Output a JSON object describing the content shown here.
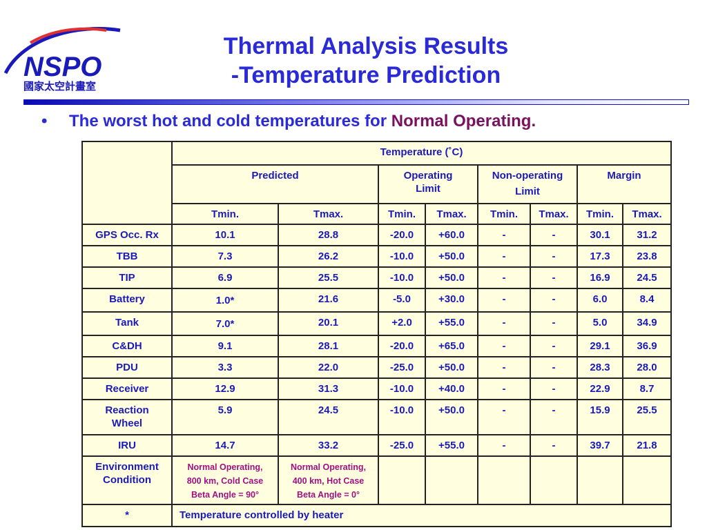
{
  "logo": {
    "wordmark": "NSPO",
    "subtitle": "國家太空計畫室"
  },
  "title": {
    "line1": "Thermal Analysis Results",
    "line2": "-Temperature Prediction"
  },
  "bullet": {
    "prefix": "The worst hot and cold temperatures for ",
    "emphasis": "Normal Operating",
    "suffix": "."
  },
  "table": {
    "header_main": "Temperature (˚C)",
    "groups": {
      "predicted": "Predicted",
      "operating_line1": "Operating",
      "operating_line2": "Limit",
      "nonoperating_line1": "Non-operating",
      "nonoperating_line2": "Limit",
      "margin": "Margin"
    },
    "sub": {
      "tmin": "Tmin.",
      "tmax": "Tmax."
    },
    "rows": [
      {
        "name": "GPS Occ. Rx",
        "values": [
          "10.1",
          "28.8",
          "-20.0",
          "+60.0",
          "-",
          "-",
          "30.1",
          "31.2"
        ]
      },
      {
        "name": "TBB",
        "values": [
          "7.3",
          "26.2",
          "-10.0",
          "+50.0",
          "-",
          "-",
          "17.3",
          "23.8"
        ]
      },
      {
        "name": "TIP",
        "values": [
          "6.9",
          "25.5",
          "-10.0",
          "+50.0",
          "-",
          "-",
          "16.9",
          "24.5"
        ]
      },
      {
        "name": "Battery",
        "values": [
          "1.0*",
          "21.6",
          "-5.0",
          "+30.0",
          "-",
          "-",
          "6.0",
          "8.4"
        ]
      },
      {
        "name": "Tank",
        "values": [
          "7.0*",
          "20.1",
          "+2.0",
          "+55.0",
          "-",
          "-",
          "5.0",
          "34.9"
        ]
      },
      {
        "name": "C&DH",
        "values": [
          "9.1",
          "28.1",
          "-20.0",
          "+65.0",
          "-",
          "-",
          "29.1",
          "36.9"
        ]
      },
      {
        "name": "PDU",
        "values": [
          "3.3",
          "22.0",
          "-25.0",
          "+50.0",
          "-",
          "-",
          "28.3",
          "28.0"
        ]
      },
      {
        "name": "Receiver",
        "values": [
          "12.9",
          "31.3",
          "-10.0",
          "+40.0",
          "-",
          "-",
          "22.9",
          "8.7"
        ]
      },
      {
        "name_line1": "Reaction",
        "name_line2": "Wheel",
        "values": [
          "5.9",
          "24.5",
          "-10.0",
          "+50.0",
          "-",
          "-",
          "15.9",
          "25.5"
        ]
      },
      {
        "name": "IRU",
        "values": [
          "14.7",
          "33.2",
          "-25.0",
          "+55.0",
          "-",
          "-",
          "39.7",
          "21.8"
        ]
      }
    ],
    "environment": {
      "label_line1": "Environment",
      "label_line2": "Condition",
      "cold_line1": "Normal Operating,",
      "cold_line2": "800 km, Cold Case",
      "cold_line3": "Beta Angle = 90°",
      "hot_line1": "Normal Operating,",
      "hot_line2": "400 km, Hot Case",
      "hot_line3": "Beta Angle = 0°"
    },
    "footnote": {
      "marker": "*",
      "text": "Temperature controlled by heater"
    }
  },
  "colors": {
    "title": "#2a2ad6",
    "emphasis": "#7a1060",
    "table_bg": "#ffffe0",
    "subtext": "#a01080"
  }
}
